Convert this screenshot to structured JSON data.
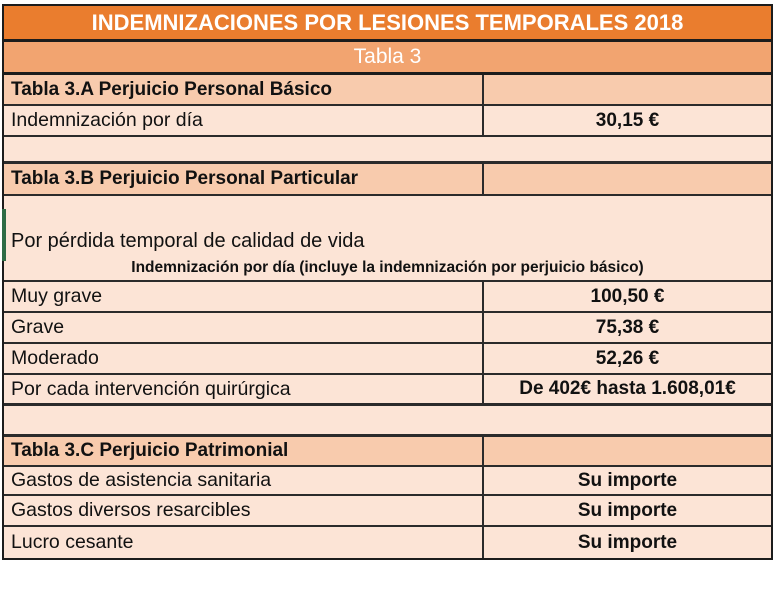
{
  "title": "INDEMNIZACIONES POR LESIONES TEMPORALES 2018",
  "subtitle": "Tabla 3",
  "colors": {
    "title_bg": "#EA7D2E",
    "subtitle_bg": "#F2A470",
    "section_header_bg": "#F8CBAD",
    "data_row_bg": "#FCE4D6",
    "border": "#2b2b2b",
    "green_accent": "#2E6B45",
    "title_text": "#ffffff"
  },
  "sections": [
    {
      "header": "Tabla 3.A Perjuicio Personal Básico",
      "rows": [
        {
          "label": "Indemnización por día",
          "value": "30,15 €"
        }
      ]
    },
    {
      "header": "Tabla 3.B Perjuicio Personal Particular",
      "note_line1": "Por pérdida temporal de calidad de vida",
      "note_line2": "Indemnización por día (incluye la indemnización por perjuicio básico)",
      "rows": [
        {
          "label": "Muy grave",
          "value": "100,50 €"
        },
        {
          "label": "Grave",
          "value": "75,38 €"
        },
        {
          "label": "Moderado",
          "value": "52,26 €"
        },
        {
          "label": "Por cada intervención quirúrgica",
          "value": "De 402€ hasta 1.608,01€"
        }
      ]
    },
    {
      "header": "Tabla 3.C Perjuicio Patrimonial",
      "rows": [
        {
          "label": "Gastos de asistencia sanitaria",
          "value": "Su importe"
        },
        {
          "label": "Gastos diversos resarcibles",
          "value": "Su importe"
        },
        {
          "label": "Lucro cesante",
          "value": "Su importe"
        }
      ]
    }
  ]
}
